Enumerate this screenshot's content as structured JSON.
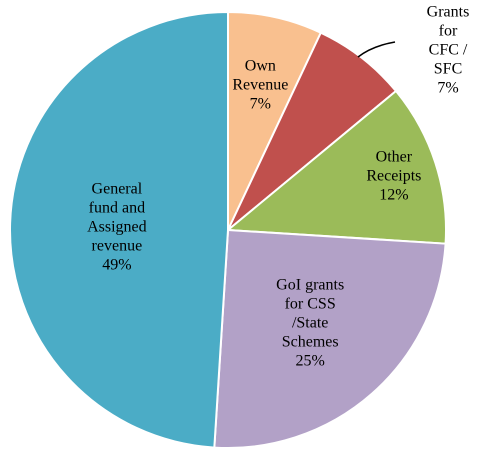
{
  "chart_data": {
    "type": "pie",
    "categories": [
      "Own\nRevenue",
      "Grants for\nCFC / SFC",
      "Other\nReceipts",
      "GoI grants\nfor CSS\n/State\nSchemes",
      "General\nfund and\nAssigned\nrevenue"
    ],
    "values": [
      7,
      7,
      12,
      25,
      49
    ],
    "value_labels": [
      "7%",
      "7%",
      "12%",
      "25%",
      "49%"
    ],
    "colors": [
      "#f9c08f",
      "#c0504d",
      "#9bbb59",
      "#b2a1c7",
      "#4bacc6"
    ]
  }
}
